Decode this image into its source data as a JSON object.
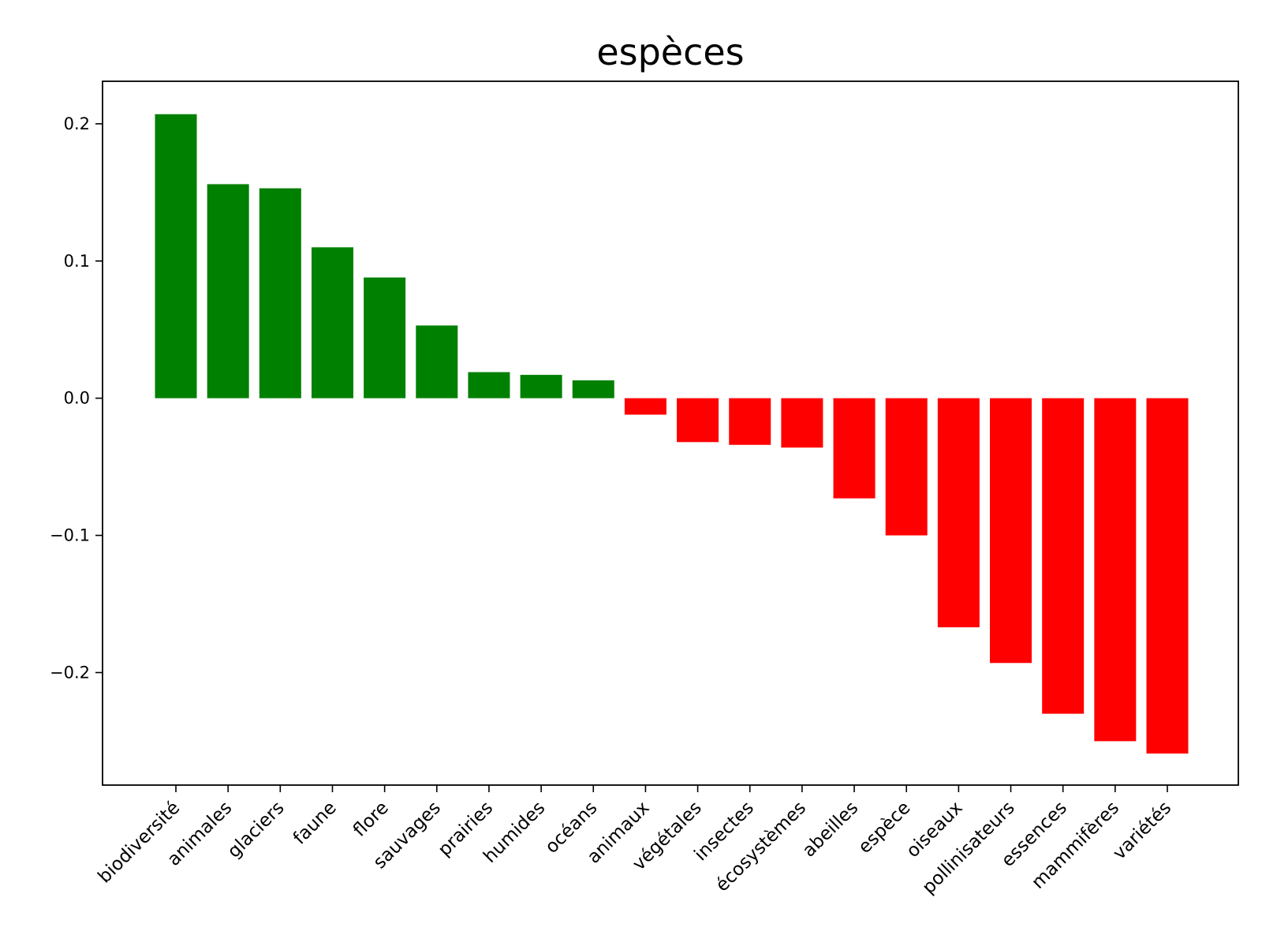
{
  "chart_data": {
    "type": "bar",
    "title": "espèces",
    "xlabel": "",
    "ylabel": "",
    "categories": [
      "biodiversité",
      "animales",
      "glaciers",
      "faune",
      "flore",
      "sauvages",
      "prairies",
      "humides",
      "océans",
      "animaux",
      "végétales",
      "insectes",
      "écosystèmes",
      "abeilles",
      "espèce",
      "oiseaux",
      "pollinisateurs",
      "essences",
      "mammifères",
      "variétés"
    ],
    "values": [
      0.207,
      0.156,
      0.153,
      0.11,
      0.088,
      0.053,
      0.019,
      0.017,
      0.013,
      -0.012,
      -0.032,
      -0.034,
      -0.036,
      -0.073,
      -0.1,
      -0.167,
      -0.193,
      -0.23,
      -0.25,
      -0.259
    ],
    "ylim": [
      -0.282,
      0.231
    ],
    "yticks": [
      0.2,
      0.1,
      0.0,
      -0.1,
      -0.2
    ],
    "ytick_labels": [
      "0.2",
      "0.1",
      "0.0",
      "−0.1",
      "−0.2"
    ],
    "grid": false,
    "legend": false,
    "colors": {
      "positive": "#008000",
      "negative": "#ff0000",
      "axes": "#000000",
      "background": "#ffffff"
    }
  }
}
